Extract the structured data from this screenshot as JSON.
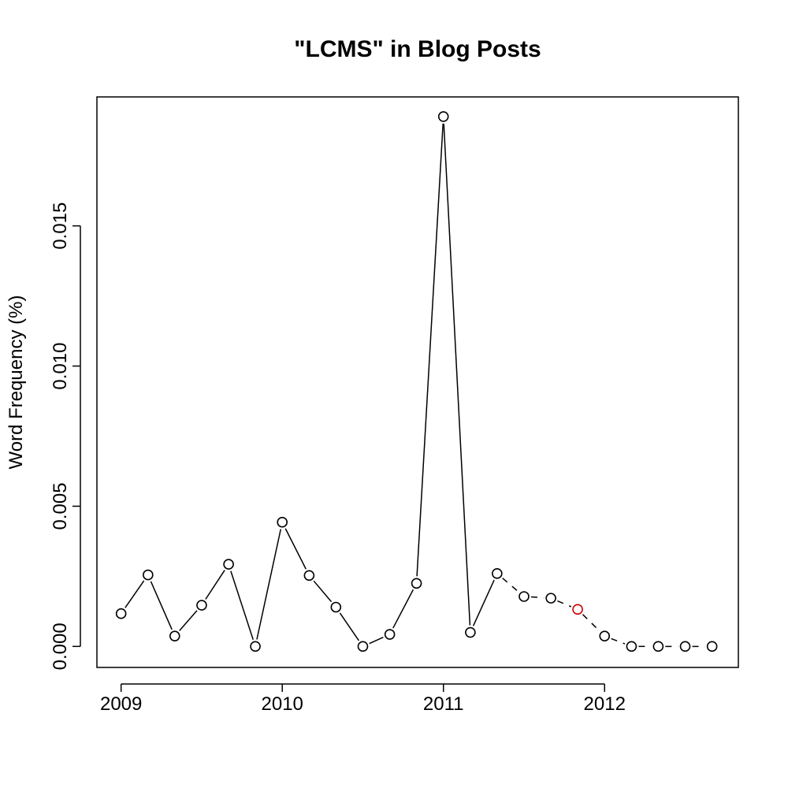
{
  "chart_data": {
    "type": "line",
    "title": "\"LCMS\" in Blog Posts",
    "xlabel": "",
    "ylabel": "Word Frequency (%)",
    "xlim": [
      2008.85,
      2012.83
    ],
    "ylim": [
      -0.00075,
      0.0196
    ],
    "x_ticks": [
      2009,
      2010,
      2011,
      2012
    ],
    "y_ticks": [
      0.0,
      0.005,
      0.01,
      0.015
    ],
    "y_tick_labels": [
      "0.000",
      "0.005",
      "0.010",
      "0.015"
    ],
    "x_tick_labels": [
      "2009",
      "2010",
      "2011",
      "2012"
    ],
    "grid": false,
    "colors": {
      "points": "#000000",
      "highlight": "#cc0000",
      "line": "#000000"
    },
    "points": [
      {
        "x": 2009.0,
        "y": 0.00117
      },
      {
        "x": 2009.167,
        "y": 0.00255
      },
      {
        "x": 2009.333,
        "y": 0.00037
      },
      {
        "x": 2009.5,
        "y": 0.00147
      },
      {
        "x": 2009.667,
        "y": 0.00293
      },
      {
        "x": 2009.833,
        "y": 0.0
      },
      {
        "x": 2010.0,
        "y": 0.00443
      },
      {
        "x": 2010.167,
        "y": 0.00253
      },
      {
        "x": 2010.333,
        "y": 0.0014
      },
      {
        "x": 2010.5,
        "y": 0.0
      },
      {
        "x": 2010.667,
        "y": 0.00043
      },
      {
        "x": 2010.833,
        "y": 0.00225
      },
      {
        "x": 2011.0,
        "y": 0.0189
      },
      {
        "x": 2011.167,
        "y": 0.0005
      },
      {
        "x": 2011.333,
        "y": 0.0026
      },
      {
        "x": 2011.5,
        "y": 0.00178
      },
      {
        "x": 2011.667,
        "y": 0.00172
      },
      {
        "x": 2011.833,
        "y": 0.00132,
        "highlight": true
      },
      {
        "x": 2012.0,
        "y": 0.00037
      },
      {
        "x": 2012.167,
        "y": 0.0
      },
      {
        "x": 2012.333,
        "y": 0.0
      },
      {
        "x": 2012.5,
        "y": 0.0
      },
      {
        "x": 2012.667,
        "y": 0.0
      }
    ],
    "solid_until_index": 14
  }
}
